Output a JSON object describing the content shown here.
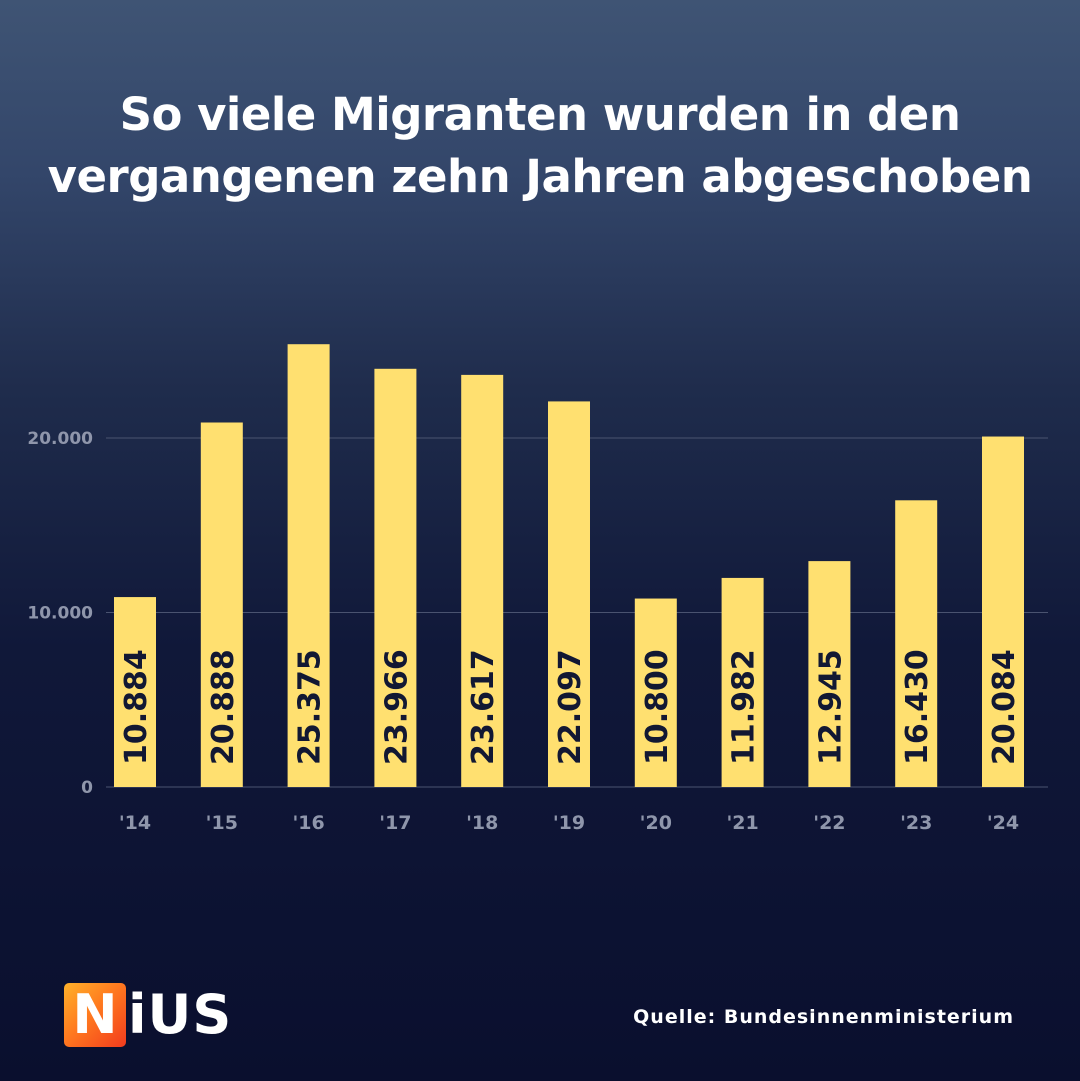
{
  "title": {
    "line1": "So viele Migranten wurden in den",
    "line2": "vergangenen zehn Jahren abgeschoben"
  },
  "source": "Quelle: Bundesinnenministerium",
  "logo": {
    "letter": "N",
    "rest": "iUS"
  },
  "colors": {
    "bar": "#ffe070",
    "value_label": "#121833",
    "grid": "#4a5370",
    "axis_label": "#8f96ab",
    "title": "#ffffff"
  },
  "chart_data": {
    "type": "bar",
    "title": "So viele Migranten wurden in den vergangenen zehn Jahren abgeschoben",
    "xlabel": "",
    "ylabel": "",
    "categories": [
      "'14",
      "'15",
      "'16",
      "'17",
      "'18",
      "'19",
      "'20",
      "'21",
      "'22",
      "'23",
      "'24"
    ],
    "values": [
      10884,
      20888,
      25375,
      23966,
      23617,
      22097,
      10800,
      11982,
      12945,
      16430,
      20084
    ],
    "value_labels": [
      "10.884",
      "20.888",
      "25.375",
      "23.966",
      "23.617",
      "22.097",
      "10.800",
      "11.982",
      "12.945",
      "16.430",
      "20.084"
    ],
    "y_ticks": [
      0,
      10000,
      20000
    ],
    "y_tick_labels": [
      "0",
      "10.000",
      "20.000"
    ],
    "ylim": [
      0,
      26000
    ],
    "grid": true,
    "legend": "none"
  }
}
